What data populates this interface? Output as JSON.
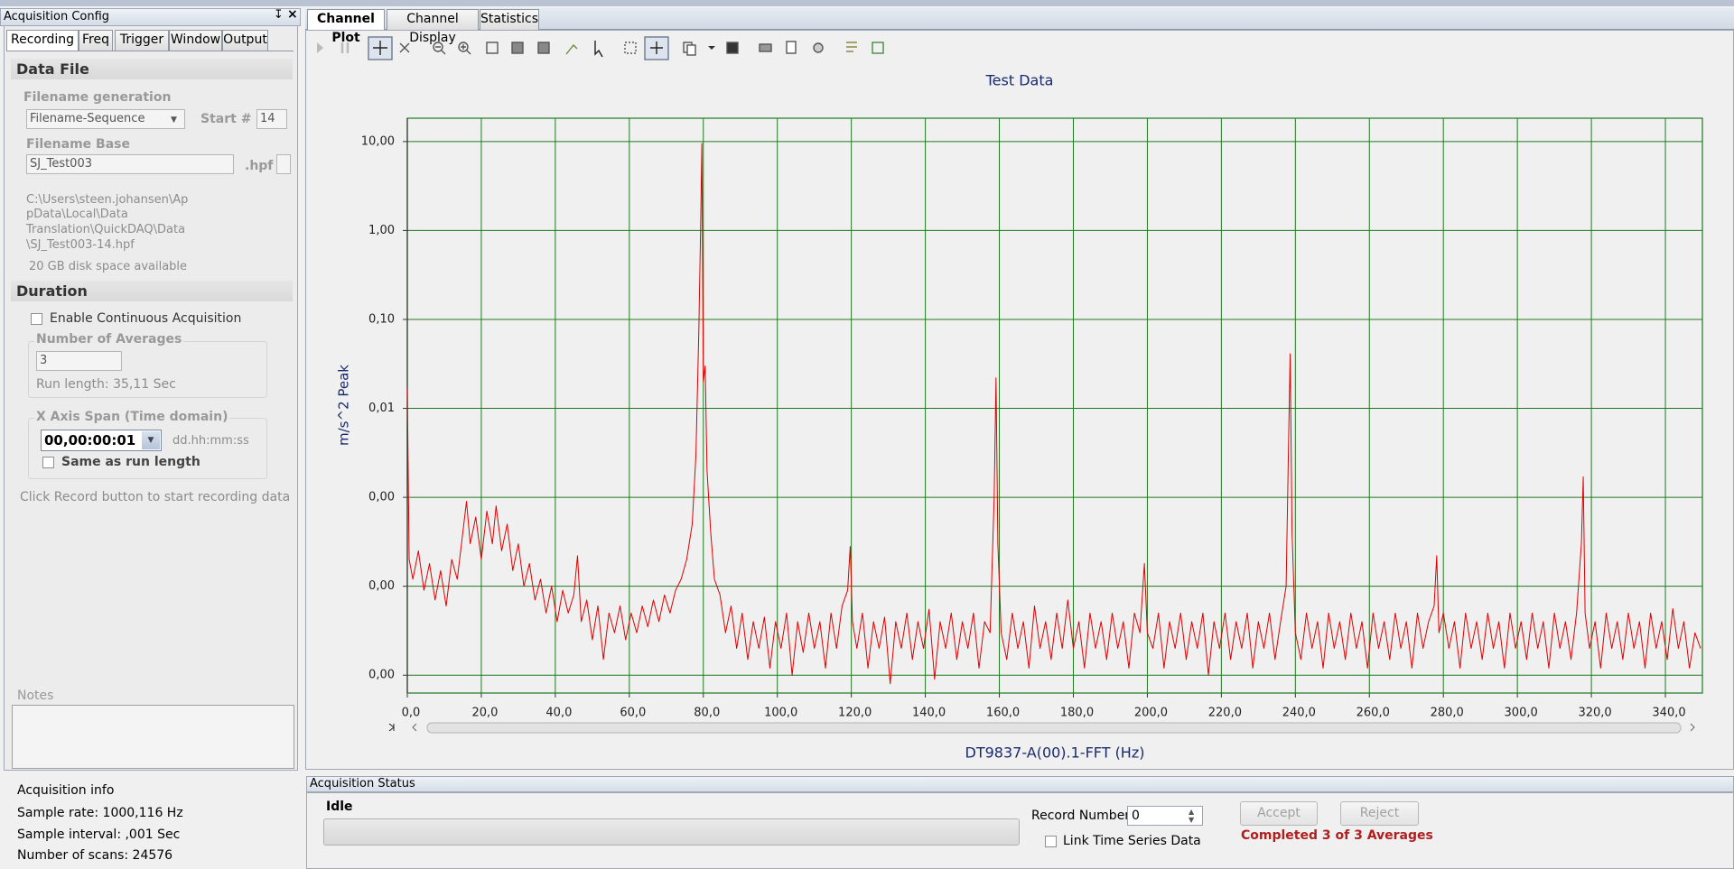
{
  "left_panel": {
    "title": "Acquisition Config",
    "tabs": [
      "Recording",
      "Freq",
      "Trigger",
      "Window",
      "Output"
    ],
    "data_file": {
      "heading": "Data File",
      "filename_generation_label": "Filename generation",
      "filename_generation": "Filename-Sequence",
      "start_label": "Start #",
      "start": "14",
      "filename_base_label": "Filename Base",
      "filename_base": "SJ_Test003",
      "extension": ".hpf",
      "path_lines": [
        "C:\\Users\\steen.johansen\\Ap",
        "pData\\Local\\Data",
        "Translation\\QuickDAQ\\Data",
        "\\SJ_Test003-14.hpf"
      ],
      "disk_space": "20 GB disk space available"
    },
    "duration": {
      "heading": "Duration",
      "continuous": "Enable Continuous Acquisition",
      "averages_label": "Number of Averages",
      "averages": "3",
      "run_length": "Run length: 35,11 Sec",
      "span_label": "X Axis Span (Time domain)",
      "span": "00,00:00:01",
      "span_format": "dd.hh:mm:ss",
      "same_as_run": "Same as run length"
    },
    "hint": "Click Record button to start recording data to dis",
    "notes_label": "Notes",
    "acquisition_info": {
      "heading": "Acquisition info",
      "lines": [
        "Sample rate: 1000,116 Hz",
        "Sample interval: ,001 Sec",
        "Number of scans: 24576"
      ]
    }
  },
  "main_tabs": [
    "Channel Plot",
    "Channel Display",
    "Statistics"
  ],
  "chart_data": {
    "type": "line",
    "title": "Test Data",
    "x_label": "DT9837-A(00).1-FFT (Hz)",
    "y_label": "m/s^2 Peak",
    "color": "#e00000",
    "log_y": true,
    "grid": true,
    "grid_color": "#1f7a1f",
    "xlim": [
      0,
      350
    ],
    "ylim": [
      6.3e-06,
      18.3
    ],
    "xticks": [
      {
        "value": 0,
        "label": "0,0"
      },
      {
        "value": 20,
        "label": "20,0"
      },
      {
        "value": 40,
        "label": "40,0"
      },
      {
        "value": 60,
        "label": "60,0"
      },
      {
        "value": 80,
        "label": "80,0"
      },
      {
        "value": 100,
        "label": "100,0"
      },
      {
        "value": 120,
        "label": "120,0"
      },
      {
        "value": 140,
        "label": "140,0"
      },
      {
        "value": 160,
        "label": "160,0"
      },
      {
        "value": 180,
        "label": "180,0"
      },
      {
        "value": 200,
        "label": "200,0"
      },
      {
        "value": 220,
        "label": "220,0"
      },
      {
        "value": 240,
        "label": "240,0"
      },
      {
        "value": 260,
        "label": "260,0"
      },
      {
        "value": 280,
        "label": "280,0"
      },
      {
        "value": 300,
        "label": "300,0"
      },
      {
        "value": 320,
        "label": "320,0"
      },
      {
        "value": 340,
        "label": "340,0"
      }
    ],
    "yticks": [
      {
        "value": 10,
        "label": "10,00"
      },
      {
        "value": 1,
        "label": "1,00"
      },
      {
        "value": 0.1,
        "label": "0,10"
      },
      {
        "value": 0.01,
        "label": "0,01"
      },
      {
        "value": 0.001,
        "label": "0,00"
      },
      {
        "value": 0.0001,
        "label": "0,00"
      },
      {
        "value": 1e-05,
        "label": "0,00"
      }
    ],
    "x": [
      0,
      0.5,
      1.5,
      3,
      4.5,
      6,
      7.5,
      9,
      10.5,
      12,
      13.5,
      15,
      16,
      17,
      18.5,
      20,
      21.5,
      23,
      24,
      25.5,
      27,
      28.5,
      30,
      31.5,
      33,
      34.5,
      36,
      37.5,
      39,
      40.5,
      42,
      43.5,
      45,
      46,
      47,
      48.5,
      50,
      51.5,
      53,
      54.5,
      56,
      57.5,
      59,
      60.5,
      62,
      63.5,
      65,
      66.5,
      68,
      69.5,
      71,
      72.5,
      74,
      75.5,
      77,
      78,
      78.8,
      79.3,
      79.6,
      80,
      80.5,
      81,
      82,
      83,
      84.5,
      86,
      87.5,
      89,
      90.5,
      92,
      93.5,
      95,
      96.5,
      98,
      99.5,
      101,
      102.5,
      104,
      105.5,
      107,
      108.5,
      110,
      111.5,
      113,
      114.5,
      116,
      117.5,
      119,
      119.7,
      120.3,
      121.5,
      123,
      124.5,
      126,
      127.5,
      129,
      130.5,
      132,
      133.5,
      135,
      136.5,
      138,
      139.5,
      141,
      142.5,
      144,
      145.5,
      147,
      148.5,
      150,
      151.5,
      153,
      154.5,
      156,
      157.5,
      158.6,
      159.1,
      159.6,
      160.5,
      162,
      163.5,
      165,
      166.5,
      168,
      169.5,
      171,
      172.5,
      174,
      175.5,
      177,
      178.5,
      180,
      181.5,
      183,
      184.5,
      186,
      187.5,
      189,
      190.5,
      192,
      193.5,
      195,
      196.5,
      198,
      199.2,
      200,
      201.5,
      203,
      204.5,
      206,
      207.5,
      209,
      210.5,
      212,
      213.5,
      215,
      216.5,
      218,
      219.5,
      221,
      222.5,
      224,
      225.5,
      227,
      228.5,
      230,
      231.5,
      233,
      234.5,
      236,
      237.5,
      238.2,
      238.6,
      239.1,
      240,
      241.5,
      243,
      244.5,
      246,
      247.5,
      249,
      250.5,
      252,
      253.5,
      255,
      256.5,
      258,
      259.5,
      261,
      262.5,
      264,
      265.5,
      267,
      268.5,
      270,
      271.5,
      273,
      274.5,
      276,
      277.5,
      278.2,
      278.8,
      280,
      281.5,
      283,
      284.5,
      286,
      287.5,
      289,
      290.5,
      292,
      293.5,
      295,
      296.5,
      298,
      299.5,
      301,
      302.5,
      304,
      305.5,
      307,
      308.5,
      310,
      311.5,
      313,
      314.5,
      316,
      317.3,
      317.8,
      318.3,
      319.5,
      321,
      322.5,
      324,
      325.5,
      327,
      328.5,
      330,
      331.5,
      333,
      334.5,
      336,
      337.5,
      339,
      340.5,
      342,
      343.5,
      345,
      346.5,
      348,
      349.5
    ],
    "values": [
      0.017,
      0.0002,
      0.00012,
      0.00025,
      9e-05,
      0.00018,
      7e-05,
      0.00015,
      6e-05,
      0.0002,
      0.00012,
      0.0004,
      0.0009,
      0.0003,
      0.0006,
      0.0002,
      0.0007,
      0.0003,
      0.0008,
      0.00025,
      0.0005,
      0.00015,
      0.0003,
      0.0001,
      0.00018,
      7e-05,
      0.00012,
      5e-05,
      0.0001,
      4e-05,
      9e-05,
      5e-05,
      8e-05,
      0.00022,
      4e-05,
      7e-05,
      2.5e-05,
      6e-05,
      1.5e-05,
      5e-05,
      3e-05,
      6e-05,
      2.5e-05,
      5e-05,
      3e-05,
      6e-05,
      3.5e-05,
      7e-05,
      4e-05,
      8e-05,
      5e-05,
      9e-05,
      0.00012,
      0.0002,
      0.0005,
      0.003,
      0.08,
      1.3,
      9.5,
      0.02,
      0.03,
      0.002,
      0.0004,
      0.00012,
      8e-05,
      3e-05,
      6e-05,
      2e-05,
      5e-05,
      1.5e-05,
      4e-05,
      2e-05,
      4.5e-05,
      1.2e-05,
      4e-05,
      2e-05,
      5e-05,
      1e-05,
      4e-05,
      1.8e-05,
      5e-05,
      2e-05,
      4e-05,
      1.2e-05,
      5e-05,
      2e-05,
      6e-05,
      9e-05,
      0.00028,
      4e-05,
      2e-05,
      5e-05,
      1.2e-05,
      4e-05,
      2e-05,
      4.5e-05,
      8e-06,
      4e-05,
      2e-05,
      5e-05,
      1.5e-05,
      4e-05,
      2e-05,
      5.5e-05,
      9e-06,
      4e-05,
      2e-05,
      5e-05,
      1.5e-05,
      4e-05,
      2e-05,
      5e-05,
      1.2e-05,
      4e-05,
      3e-05,
      0.001,
      0.022,
      0.0003,
      3e-05,
      1.5e-05,
      5e-05,
      2e-05,
      4e-05,
      1.2e-05,
      6e-05,
      2e-05,
      4e-05,
      1.5e-05,
      5e-05,
      2e-05,
      7e-05,
      2e-05,
      4e-05,
      1.2e-05,
      5e-05,
      2e-05,
      4e-05,
      1.5e-05,
      5e-05,
      2e-05,
      4e-05,
      1.2e-05,
      5e-05,
      3e-05,
      0.00018,
      3e-05,
      2e-05,
      5e-05,
      1.2e-05,
      4e-05,
      2e-05,
      5e-05,
      1.5e-05,
      4e-05,
      2e-05,
      5e-05,
      1e-05,
      4e-05,
      2e-05,
      5e-05,
      1.5e-05,
      4e-05,
      2e-05,
      5e-05,
      1.2e-05,
      4e-05,
      2e-05,
      5e-05,
      1.5e-05,
      4e-05,
      0.0001,
      0.005,
      0.041,
      0.0004,
      3e-05,
      1.5e-05,
      5e-05,
      2e-05,
      4e-05,
      1.2e-05,
      5e-05,
      2e-05,
      4e-05,
      1.5e-05,
      5e-05,
      2e-05,
      4e-05,
      1.2e-05,
      5e-05,
      2e-05,
      4e-05,
      1.5e-05,
      5e-05,
      2e-05,
      4e-05,
      1.2e-05,
      5e-05,
      2e-05,
      4e-05,
      6e-05,
      0.00022,
      3e-05,
      5e-05,
      2e-05,
      4e-05,
      1.2e-05,
      5e-05,
      2e-05,
      4e-05,
      1.5e-05,
      5e-05,
      2e-05,
      4e-05,
      1.2e-05,
      5e-05,
      2e-05,
      4e-05,
      1.5e-05,
      5e-05,
      2e-05,
      4e-05,
      1.2e-05,
      5e-05,
      2e-05,
      4e-05,
      1.5e-05,
      5e-05,
      0.0003,
      0.0017,
      5e-05,
      2e-05,
      4e-05,
      1.2e-05,
      5e-05,
      2e-05,
      4e-05,
      1.5e-05,
      5e-05,
      2e-05,
      4e-05,
      1.2e-05,
      5e-05,
      2e-05,
      4e-05,
      1.5e-05,
      5.6e-05,
      2e-05,
      4e-05,
      1.2e-05,
      3e-05,
      2e-05
    ]
  },
  "status": {
    "title": "Acquisition Status",
    "state": "Idle",
    "record_number_label": "Record Number",
    "record_number": "0",
    "accept": "Accept",
    "reject": "Reject",
    "link": "Link Time Series Data",
    "completed": "Completed 3 of 3 Averages"
  }
}
